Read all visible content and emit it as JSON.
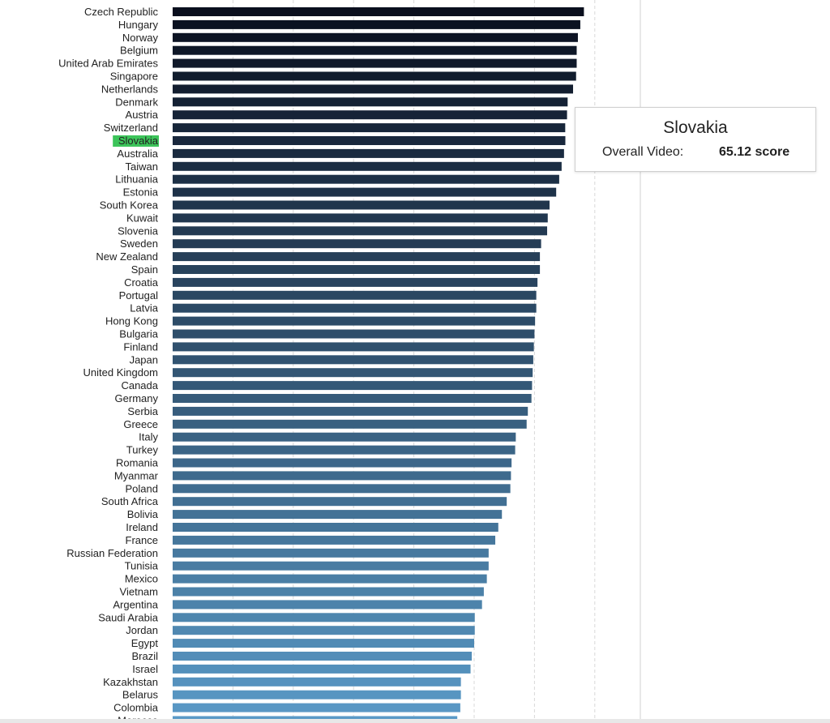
{
  "chart_data": {
    "type": "bar",
    "orientation": "horizontal",
    "categories": [
      "Czech Republic",
      "Hungary",
      "Norway",
      "Belgium",
      "United Arab Emirates",
      "Singapore",
      "Netherlands",
      "Denmark",
      "Austria",
      "Switzerland",
      "Slovakia",
      "Australia",
      "Taiwan",
      "Lithuania",
      "Estonia",
      "South Korea",
      "Kuwait",
      "Slovenia",
      "Sweden",
      "New Zealand",
      "Spain",
      "Croatia",
      "Portugal",
      "Latvia",
      "Hong Kong",
      "Bulgaria",
      "Finland",
      "Japan",
      "United Kingdom",
      "Canada",
      "Germany",
      "Serbia",
      "Greece",
      "Italy",
      "Turkey",
      "Romania",
      "Myanmar",
      "Poland",
      "South Africa",
      "Bolivia",
      "Ireland",
      "France",
      "Russian Federation",
      "Tunisia",
      "Mexico",
      "Vietnam",
      "Argentina",
      "Saudi Arabia",
      "Jordan",
      "Egypt",
      "Brazil",
      "Israel",
      "Kazakhstan",
      "Belarus",
      "Colombia",
      "Morocco"
    ],
    "values": [
      68.2,
      67.6,
      67.2,
      67.0,
      67.0,
      66.9,
      66.4,
      65.5,
      65.4,
      65.1,
      65.12,
      64.9,
      64.5,
      64.1,
      63.6,
      62.5,
      62.2,
      62.1,
      61.1,
      60.9,
      60.9,
      60.5,
      60.3,
      60.3,
      60.1,
      60.0,
      59.9,
      59.8,
      59.7,
      59.6,
      59.5,
      58.9,
      58.7,
      56.9,
      56.8,
      56.2,
      56.1,
      56.0,
      55.4,
      54.6,
      54.0,
      53.5,
      52.4,
      52.4,
      52.1,
      51.6,
      51.3,
      50.1,
      50.1,
      50.0,
      49.6,
      49.4,
      47.8,
      47.8,
      47.7,
      47.2
    ],
    "xlim": [
      0,
      75
    ],
    "gridlines": [
      10,
      20,
      30,
      40,
      50,
      60,
      70
    ],
    "grid": true,
    "color_start": "#0a0f1e",
    "color_end": "#5a9ac7",
    "highlight": {
      "category": "Slovakia",
      "color": "#3cc45a"
    }
  },
  "tooltip": {
    "title": "Slovakia",
    "measure": "Overall Video:",
    "value": "65.12 score"
  }
}
